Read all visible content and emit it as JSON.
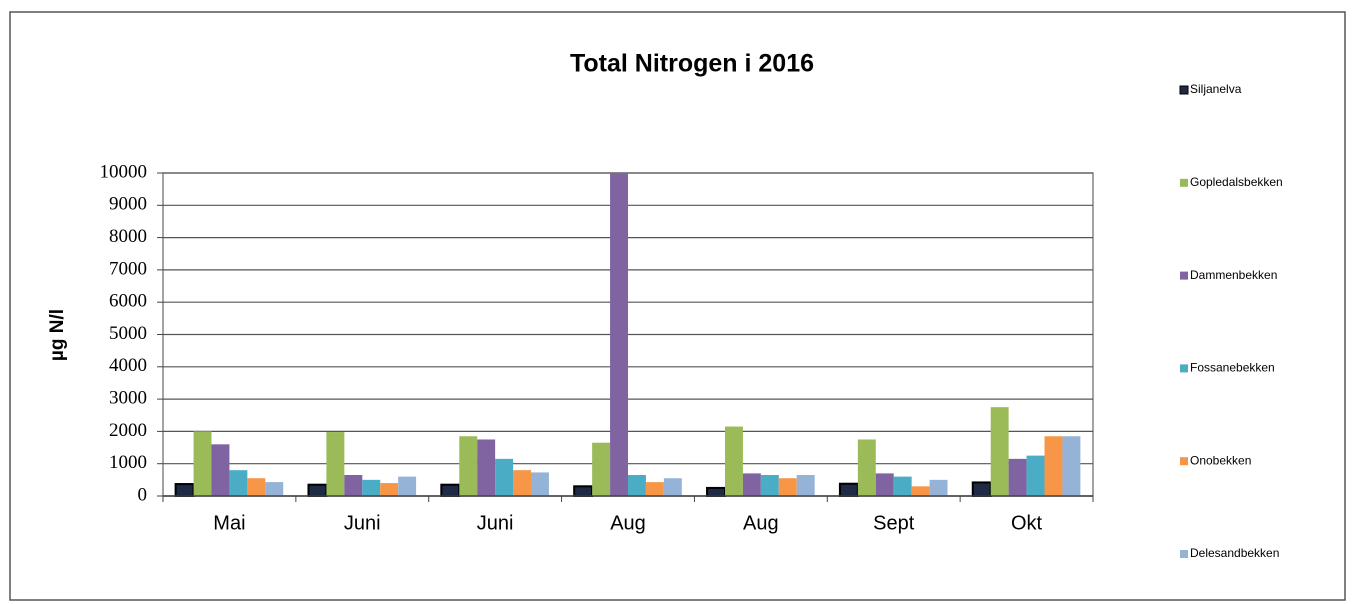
{
  "chart_data": {
    "type": "bar",
    "title": "Total Nitrogen i 2016",
    "y_label": "µg N/l",
    "categories": [
      "Mai",
      "Juni",
      "Juni",
      "Aug",
      "Aug",
      "Sept",
      "Okt"
    ],
    "series": [
      {
        "name": "Siljanelva",
        "color": "#1f2a44",
        "values": [
          370,
          350,
          350,
          300,
          250,
          380,
          420
        ]
      },
      {
        "name": "Gopledalsbekken",
        "color": "#9bbb59",
        "values": [
          2000,
          1980,
          1850,
          1650,
          2150,
          1750,
          2750
        ]
      },
      {
        "name": "Dammenbekken",
        "color": "#8064a2",
        "values": [
          1600,
          650,
          1750,
          10000,
          700,
          700,
          1150
        ]
      },
      {
        "name": "Fossanebekken",
        "color": "#4bacc6",
        "values": [
          800,
          500,
          1150,
          650,
          650,
          600,
          1250
        ]
      },
      {
        "name": "Onobekken",
        "color": "#f79646",
        "values": [
          550,
          400,
          800,
          430,
          550,
          300,
          1850
        ]
      },
      {
        "name": "Delesandbekken",
        "color": "#95b3d7",
        "values": [
          430,
          600,
          730,
          550,
          650,
          500,
          1850
        ]
      }
    ],
    "ylim": [
      0,
      10000
    ],
    "yticks": [
      0,
      1000,
      2000,
      3000,
      4000,
      5000,
      6000,
      7000,
      8000,
      9000,
      10000
    ],
    "grid": true,
    "legend": "right"
  }
}
